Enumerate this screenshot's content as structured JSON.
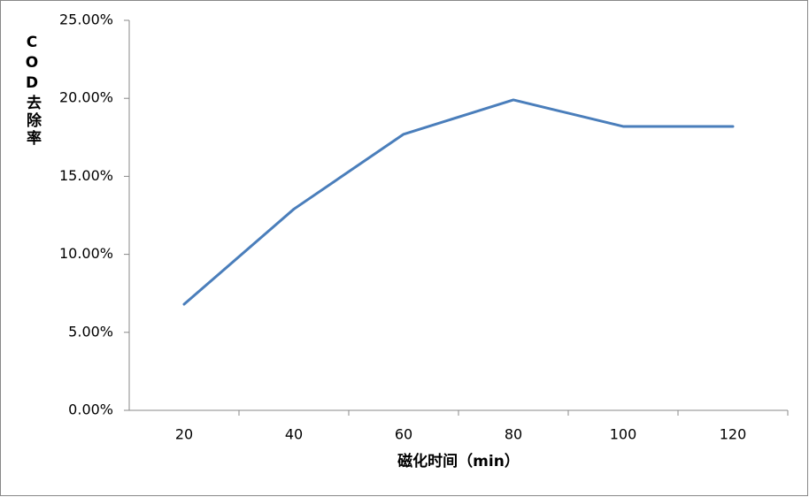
{
  "chart_data": {
    "type": "line",
    "y_label": "COD去除率",
    "x_label": "磁化时间（min）",
    "categories": [
      "20",
      "40",
      "60",
      "80",
      "100",
      "120"
    ],
    "series": [
      {
        "color": "#4a7ebb",
        "values": [
          6.8,
          12.9,
          17.7,
          19.9,
          18.2,
          18.2
        ]
      }
    ],
    "ylim": [
      0,
      25
    ],
    "yticks": [
      {
        "value": 0,
        "label": "0.00%"
      },
      {
        "value": 5,
        "label": "5.00%"
      },
      {
        "value": 10,
        "label": "10.00%"
      },
      {
        "value": 15,
        "label": "15.00%"
      },
      {
        "value": 20,
        "label": "20.00%"
      },
      {
        "value": 25,
        "label": "25.00%"
      }
    ],
    "grid": false
  }
}
